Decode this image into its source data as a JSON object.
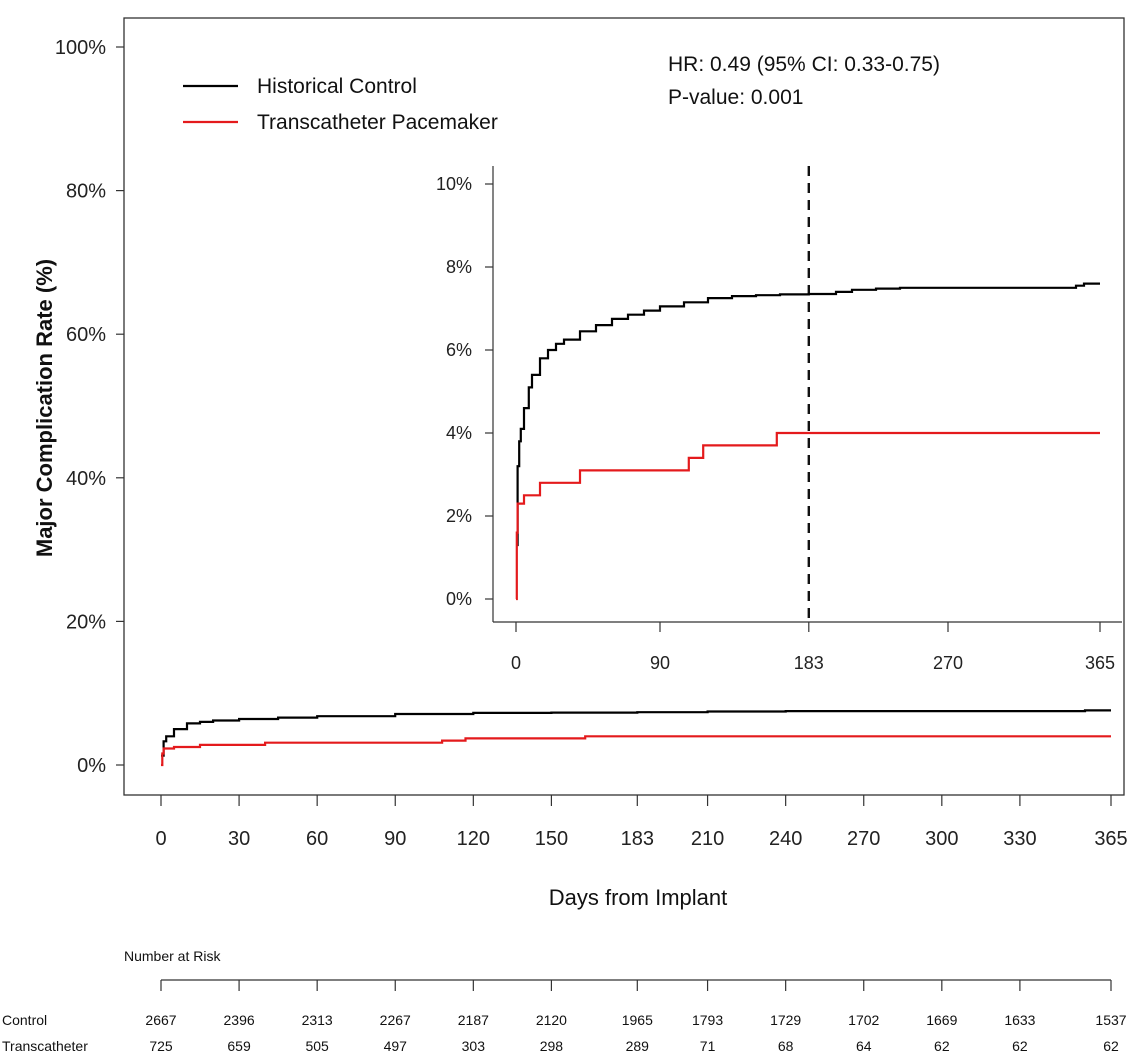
{
  "chart_data": [
    {
      "type": "line",
      "title": "",
      "xlabel": "Days from Implant",
      "ylabel": "Major Complication Rate (%)",
      "xlim": [
        0,
        365
      ],
      "ylim": [
        0,
        100
      ],
      "x_ticks": [
        0,
        30,
        60,
        90,
        120,
        150,
        183,
        210,
        240,
        270,
        300,
        330,
        365
      ],
      "y_ticks": [
        "0%",
        "20%",
        "40%",
        "60%",
        "80%",
        "100%"
      ],
      "y_tick_values": [
        0,
        20,
        40,
        60,
        80,
        100
      ],
      "legend": {
        "position": "top-left",
        "entries": [
          "Historical Control",
          "Transcatheter Pacemaker"
        ]
      },
      "annotations": [
        "HR: 0.49 (95% CI: 0.33-0.75)",
        "P-value: 0.001"
      ],
      "series": [
        {
          "name": "Historical Control",
          "color": "#000000",
          "x": [
            0,
            1,
            2,
            5,
            10,
            15,
            20,
            30,
            45,
            60,
            90,
            120,
            150,
            183,
            210,
            240,
            270,
            300,
            330,
            350,
            355,
            365
          ],
          "y": [
            1.3,
            3.3,
            4.0,
            5.0,
            5.8,
            6.0,
            6.2,
            6.4,
            6.6,
            6.8,
            7.1,
            7.25,
            7.3,
            7.35,
            7.45,
            7.5,
            7.5,
            7.5,
            7.5,
            7.5,
            7.6,
            7.6
          ]
        },
        {
          "name": "Transcatheter Pacemaker",
          "color": "#e41a1c",
          "x": [
            0,
            0.5,
            1,
            3,
            5,
            10,
            15,
            25,
            35,
            40,
            50,
            60,
            90,
            105,
            108,
            117,
            130,
            150,
            160,
            163,
            183,
            210,
            250,
            300,
            365
          ],
          "y": [
            0,
            1.6,
            2.3,
            2.3,
            2.5,
            2.5,
            2.8,
            2.8,
            2.8,
            3.1,
            3.1,
            3.1,
            3.1,
            3.1,
            3.4,
            3.7,
            3.7,
            3.7,
            3.7,
            4.0,
            4.0,
            4.0,
            4.0,
            4.0,
            4.0
          ]
        }
      ],
      "risk_table": {
        "title": "Number at Risk",
        "rows": [
          {
            "label": "Control",
            "values": [
              "2667",
              "2396",
              "2313",
              "2267",
              "2187",
              "2120",
              "1965",
              "1793",
              "1729",
              "1702",
              "1669",
              "1633",
              "1537"
            ]
          },
          {
            "label": "Transcatheter",
            "values": [
              "725",
              "659",
              "505",
              "497",
              "303",
              "298",
              "289",
              "71",
              "68",
              "64",
              "62",
              "62",
              "62"
            ]
          }
        ]
      }
    },
    {
      "type": "line",
      "title": "",
      "xlabel": "",
      "ylabel": "",
      "xlim": [
        0,
        365
      ],
      "ylim": [
        0,
        10
      ],
      "x_ticks": [
        0,
        90,
        183,
        270,
        365
      ],
      "y_ticks": [
        "0%",
        "2%",
        "4%",
        "6%",
        "8%",
        "10%"
      ],
      "y_tick_values": [
        0,
        2,
        4,
        6,
        8,
        10
      ],
      "reference_line": {
        "x": 183,
        "style": "dashed"
      },
      "series": [
        {
          "name": "Historical Control",
          "color": "#000000",
          "x": [
            0,
            1,
            2,
            3,
            5,
            8,
            10,
            15,
            20,
            25,
            30,
            40,
            50,
            60,
            70,
            80,
            90,
            105,
            120,
            135,
            150,
            165,
            183,
            200,
            210,
            225,
            240,
            260,
            300,
            340,
            350,
            355,
            365
          ],
          "y": [
            1.3,
            3.2,
            3.8,
            4.1,
            4.6,
            5.1,
            5.4,
            5.8,
            6.0,
            6.15,
            6.25,
            6.45,
            6.6,
            6.75,
            6.85,
            6.95,
            7.05,
            7.15,
            7.25,
            7.3,
            7.32,
            7.34,
            7.35,
            7.4,
            7.45,
            7.48,
            7.5,
            7.5,
            7.5,
            7.5,
            7.55,
            7.6,
            7.6
          ]
        },
        {
          "name": "Transcatheter Pacemaker",
          "color": "#e41a1c",
          "x": [
            0,
            0.5,
            1,
            3,
            5,
            10,
            15,
            25,
            35,
            40,
            50,
            60,
            90,
            105,
            108,
            117,
            130,
            150,
            160,
            163,
            183,
            210,
            250,
            300,
            365
          ],
          "y": [
            0,
            1.6,
            2.3,
            2.3,
            2.5,
            2.5,
            2.8,
            2.8,
            2.8,
            3.1,
            3.1,
            3.1,
            3.1,
            3.1,
            3.4,
            3.7,
            3.7,
            3.7,
            3.7,
            4.0,
            4.0,
            4.0,
            4.0,
            4.0,
            4.0
          ]
        }
      ]
    }
  ]
}
